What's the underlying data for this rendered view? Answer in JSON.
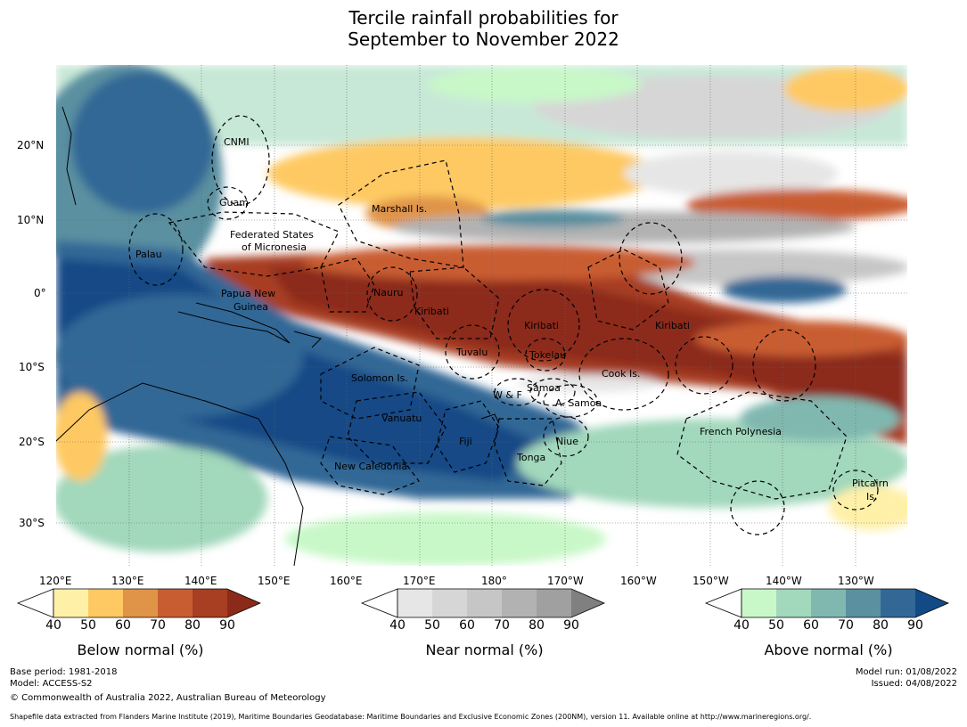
{
  "title_line1": "Tercile rainfall probabilities for",
  "title_line2": "September to November 2022",
  "lat_labels": [
    "20°N",
    "10°N",
    "0°",
    "10°S",
    "20°S",
    "30°S"
  ],
  "lon_labels": [
    "120°E",
    "130°E",
    "140°E",
    "150°E",
    "160°E",
    "170°E",
    "180°",
    "170°W",
    "160°W",
    "150°W",
    "140°W",
    "130°W"
  ],
  "regions": [
    "CNMI",
    "Guam",
    "Marshall Is.",
    "Federated States",
    "of Micronesia",
    "Palau",
    "Papua New",
    "Guinea",
    "Nauru",
    "Kiribati",
    "Kiribati",
    "Kiribati",
    "Tuvalu",
    "Tokelau",
    "Cook Is.",
    "Solomon Is.",
    "Samoa",
    "W & F",
    "A. Samoa",
    "Vanuatu",
    "Fiji",
    "Niue",
    "Tonga",
    "French Polynesia",
    "New Caledonia",
    "Pitcairn",
    "Is."
  ],
  "colorbars": [
    {
      "title": "Below normal (%)",
      "ticks": [
        "40",
        "50",
        "60",
        "70",
        "80",
        "90"
      ],
      "colors": [
        "#fff0a8",
        "#fec962",
        "#e09448",
        "#c95d32",
        "#a83e22",
        "#8c2a1a"
      ]
    },
    {
      "title": "Near normal (%)",
      "ticks": [
        "40",
        "50",
        "60",
        "70",
        "80",
        "90"
      ],
      "colors": [
        "#e6e6e6",
        "#d6d6d6",
        "#c6c6c6",
        "#b2b2b2",
        "#a0a0a0",
        "#808080"
      ]
    },
    {
      "title": "Above normal (%)",
      "ticks": [
        "40",
        "50",
        "60",
        "70",
        "80",
        "90"
      ],
      "colors": [
        "#c8f8c8",
        "#a2d8bc",
        "#80b8b0",
        "#5a90a0",
        "#336896",
        "#124a86"
      ]
    }
  ],
  "footer": {
    "base_period": "Base period: 1981-2018",
    "model": "Model: ACCESS-S2",
    "copyright": "© Commonwealth of Australia 2022, Australian Bureau of Meteorology",
    "model_run": "Model run: 01/08/2022",
    "issued": "Issued: 04/08/2022",
    "shapefile": "Shapefile data extracted from Flanders Marine Institute (2019), Maritime Boundaries Geodatabase: Maritime Boundaries and Exclusive Economic Zones (200NM), version 11. Available online at http://www.marineregions.org/."
  }
}
